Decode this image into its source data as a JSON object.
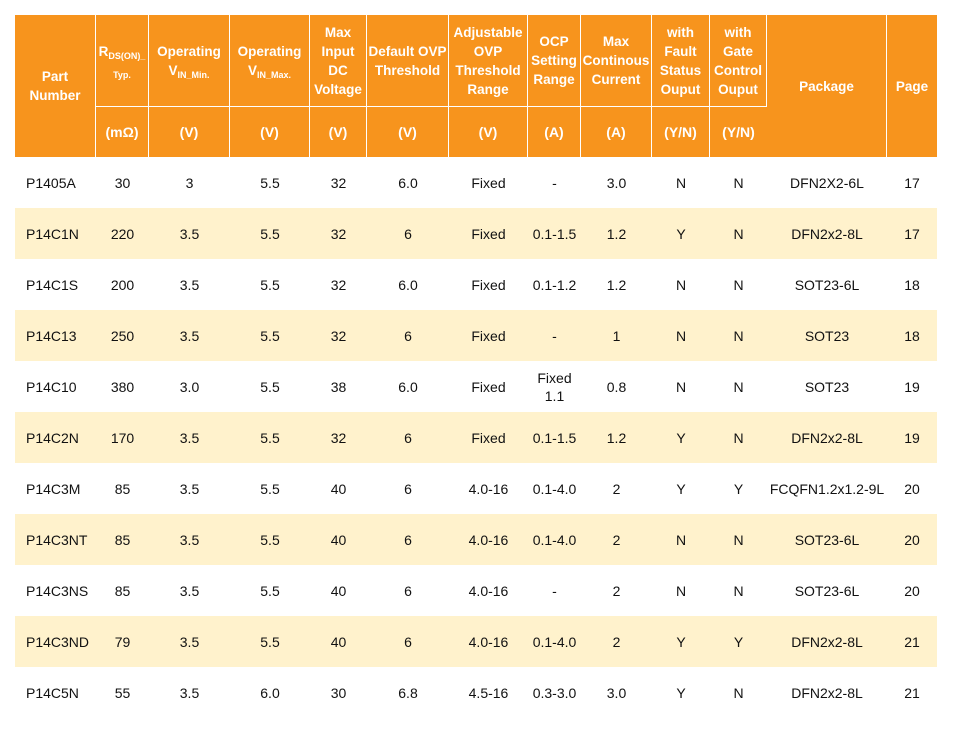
{
  "headers": {
    "part": "Part Number",
    "rds_main": "R",
    "rds_sub": "DS(ON)_ Typ.",
    "vin_min_main": "Operating V",
    "vin_min_sub": "IN_Min.",
    "vin_max_main": "Operating V",
    "vin_max_sub": "IN_Max.",
    "max_input": "Max Input DC Voltage",
    "default_ovp": "Default OVP Threshold",
    "adj_ovp": "Adjustable OVP Threshold Range",
    "ocp": "OCP Setting Range",
    "max_current": "Max Continous Current",
    "fault": "with Fault Status Ouput",
    "gate": "with Gate Control Ouput",
    "package": "Package",
    "page": "Page"
  },
  "units": [
    "(mΩ)",
    "(V)",
    "(V)",
    "(V)",
    "(V)",
    "(V)",
    "(A)",
    "(A)",
    "(Y/N)",
    "(Y/N)"
  ],
  "rows": [
    [
      "P1405A",
      "30",
      "3",
      "5.5",
      "32",
      "6.0",
      "Fixed",
      "-",
      "3.0",
      "N",
      "N",
      "DFN2X2-6L",
      "17"
    ],
    [
      "P14C1N",
      "220",
      "3.5",
      "5.5",
      "32",
      "6",
      "Fixed",
      "0.1-1.5",
      "1.2",
      "Y",
      "N",
      "DFN2x2-8L",
      "17"
    ],
    [
      "P14C1S",
      "200",
      "3.5",
      "5.5",
      "32",
      "6.0",
      "Fixed",
      "0.1-1.2",
      "1.2",
      "N",
      "N",
      "SOT23-6L",
      "18"
    ],
    [
      "P14C13",
      "250",
      "3.5",
      "5.5",
      "32",
      "6",
      "Fixed",
      "-",
      "1",
      "N",
      "N",
      "SOT23",
      "18"
    ],
    [
      "P14C10",
      "380",
      "3.0",
      "5.5",
      "38",
      "6.0",
      "Fixed",
      "Fixed 1.1",
      "0.8",
      "N",
      "N",
      "SOT23",
      "19"
    ],
    [
      "P14C2N",
      "170",
      "3.5",
      "5.5",
      "32",
      "6",
      "Fixed",
      "0.1-1.5",
      "1.2",
      "Y",
      "N",
      "DFN2x2-8L",
      "19"
    ],
    [
      "P14C3M",
      "85",
      "3.5",
      "5.5",
      "40",
      "6",
      "4.0-16",
      "0.1-4.0",
      "2",
      "Y",
      "Y",
      "FCQFN1.2x1.2-9L",
      "20"
    ],
    [
      "P14C3NT",
      "85",
      "3.5",
      "5.5",
      "40",
      "6",
      "4.0-16",
      "0.1-4.0",
      "2",
      "N",
      "N",
      "SOT23-6L",
      "20"
    ],
    [
      "P14C3NS",
      "85",
      "3.5",
      "5.5",
      "40",
      "6",
      "4.0-16",
      "-",
      "2",
      "N",
      "N",
      "SOT23-6L",
      "20"
    ],
    [
      "P14C3ND",
      "79",
      "3.5",
      "5.5",
      "40",
      "6",
      "4.0-16",
      "0.1-4.0",
      "2",
      "Y",
      "Y",
      "DFN2x2-8L",
      "21"
    ],
    [
      "P14C5N",
      "55",
      "3.5",
      "6.0",
      "30",
      "6.8",
      "4.5-16",
      "0.3-3.0",
      "3.0",
      "Y",
      "N",
      "DFN2x2-8L",
      "21"
    ]
  ]
}
